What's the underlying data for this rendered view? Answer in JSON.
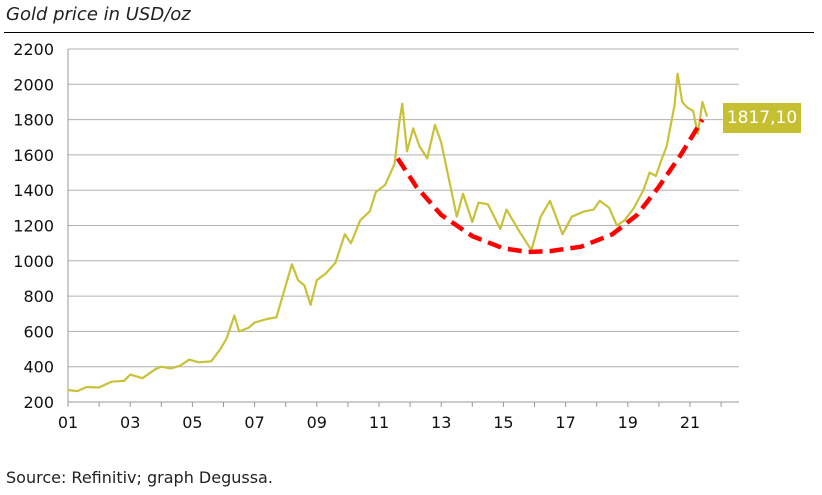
{
  "title": "Gold price in USD/oz",
  "source": "Source: Refinitiv; graph Degussa.",
  "colors": {
    "line": "#c8c23a",
    "trend": "#ff0000",
    "label_bg": "#c6bf32",
    "grid": "#b0b0b0"
  },
  "chart_data": {
    "type": "line",
    "title": "Gold price in USD/oz",
    "xlabel": "",
    "ylabel": "",
    "ylim": [
      200,
      2200
    ],
    "xlim": [
      2001,
      2023
    ],
    "yticks": [
      200,
      400,
      600,
      800,
      1000,
      1200,
      1400,
      1600,
      1800,
      2000,
      2200
    ],
    "xticks": [
      {
        "value": 2001,
        "label": "01"
      },
      {
        "value": 2003,
        "label": "03"
      },
      {
        "value": 2005,
        "label": "05"
      },
      {
        "value": 2007,
        "label": "07"
      },
      {
        "value": 2009,
        "label": "09"
      },
      {
        "value": 2011,
        "label": "11"
      },
      {
        "value": 2013,
        "label": "13"
      },
      {
        "value": 2015,
        "label": "15"
      },
      {
        "value": 2017,
        "label": "17"
      },
      {
        "value": 2019,
        "label": "19"
      },
      {
        "value": 2021,
        "label": "21"
      }
    ],
    "grid": true,
    "series": [
      {
        "name": "Gold price",
        "x": [
          2001.0,
          2001.3,
          2001.6,
          2002.0,
          2002.4,
          2002.8,
          2003.0,
          2003.4,
          2003.8,
          2004.0,
          2004.3,
          2004.6,
          2004.9,
          2005.2,
          2005.6,
          2005.9,
          2006.1,
          2006.35,
          2006.5,
          2006.8,
          2007.0,
          2007.4,
          2007.7,
          2007.9,
          2008.2,
          2008.4,
          2008.6,
          2008.8,
          2009.0,
          2009.3,
          2009.6,
          2009.9,
          2010.1,
          2010.4,
          2010.7,
          2010.9,
          2011.2,
          2011.5,
          2011.65,
          2011.75,
          2011.9,
          2012.1,
          2012.3,
          2012.55,
          2012.8,
          2013.0,
          2013.3,
          2013.5,
          2013.7,
          2014.0,
          2014.2,
          2014.5,
          2014.9,
          2015.1,
          2015.5,
          2015.9,
          2016.2,
          2016.5,
          2016.9,
          2017.2,
          2017.6,
          2017.9,
          2018.1,
          2018.4,
          2018.65,
          2018.9,
          2019.2,
          2019.5,
          2019.7,
          2019.9,
          2020.1,
          2020.25,
          2020.5,
          2020.6,
          2020.75,
          2020.9,
          2021.1,
          2021.25,
          2021.4,
          2021.55
        ],
        "values": [
          268,
          262,
          285,
          282,
          315,
          320,
          355,
          335,
          385,
          400,
          390,
          405,
          440,
          425,
          430,
          500,
          560,
          690,
          600,
          620,
          650,
          670,
          680,
          800,
          980,
          890,
          860,
          750,
          890,
          930,
          990,
          1150,
          1100,
          1230,
          1280,
          1390,
          1430,
          1550,
          1780,
          1890,
          1620,
          1750,
          1650,
          1580,
          1770,
          1670,
          1420,
          1250,
          1380,
          1220,
          1330,
          1320,
          1180,
          1290,
          1170,
          1060,
          1250,
          1340,
          1150,
          1250,
          1280,
          1290,
          1340,
          1300,
          1200,
          1230,
          1300,
          1400,
          1500,
          1480,
          1580,
          1650,
          1880,
          2060,
          1900,
          1870,
          1850,
          1720,
          1900,
          1817.1
        ]
      },
      {
        "name": "Trend",
        "style": "dashed",
        "x": [
          2011.6,
          2012.2,
          2013.0,
          2014.0,
          2015.0,
          2015.8,
          2016.5,
          2017.5,
          2018.5,
          2019.3,
          2020.0,
          2020.7,
          2021.4
        ],
        "values": [
          1580,
          1420,
          1260,
          1140,
          1070,
          1050,
          1055,
          1080,
          1150,
          1260,
          1420,
          1600,
          1800
        ]
      }
    ],
    "annotations": [
      {
        "text": "1817,10",
        "x": 2021.55,
        "y": 1817.1
      }
    ]
  }
}
